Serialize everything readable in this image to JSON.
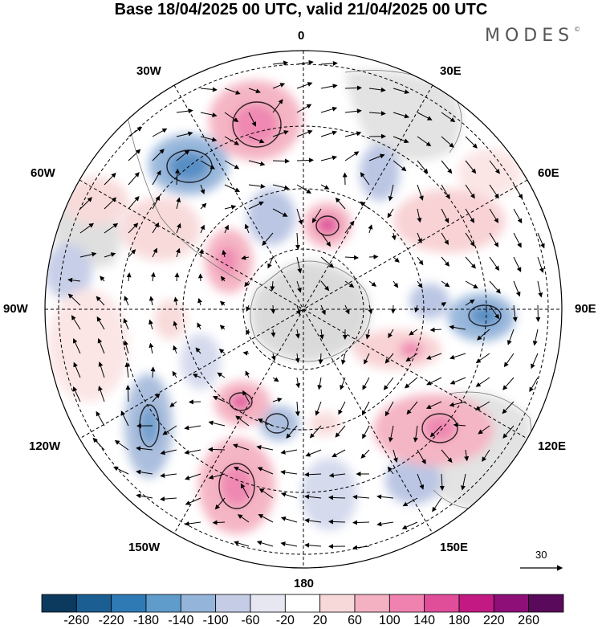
{
  "title": "Base 18/04/2025 00 UTC, valid 21/04/2025 00 UTC",
  "brand": "MODES",
  "brand_mark": "©",
  "longitude_labels": {
    "lon_0": "0",
    "lon_30e": "30E",
    "lon_60e": "60E",
    "lon_90e": "90E",
    "lon_120e": "120E",
    "lon_150e": "150E",
    "lon_180": "180",
    "lon_150w": "150W",
    "lon_120w": "120W",
    "lon_90w": "90W",
    "lon_60w": "60W",
    "lon_30w": "30W"
  },
  "wind_reference": {
    "value": "30",
    "icon": "arrow-right-icon"
  },
  "projection": "south-polar-stereographic",
  "colorbar": {
    "ticks": [
      "-260",
      "-220",
      "-180",
      "-140",
      "-100",
      "-60",
      "-20",
      "20",
      "60",
      "100",
      "140",
      "180",
      "220",
      "260"
    ],
    "colors": [
      "#0b3a5e",
      "#1b5f92",
      "#2f7ab5",
      "#5f9ccb",
      "#94b4da",
      "#c5cce6",
      "#e7e7f2",
      "#ffffff",
      "#f8d9d9",
      "#f4b1c1",
      "#ef82ae",
      "#e04e9a",
      "#c21a82",
      "#8e0f78",
      "#5a0a5a"
    ]
  }
}
